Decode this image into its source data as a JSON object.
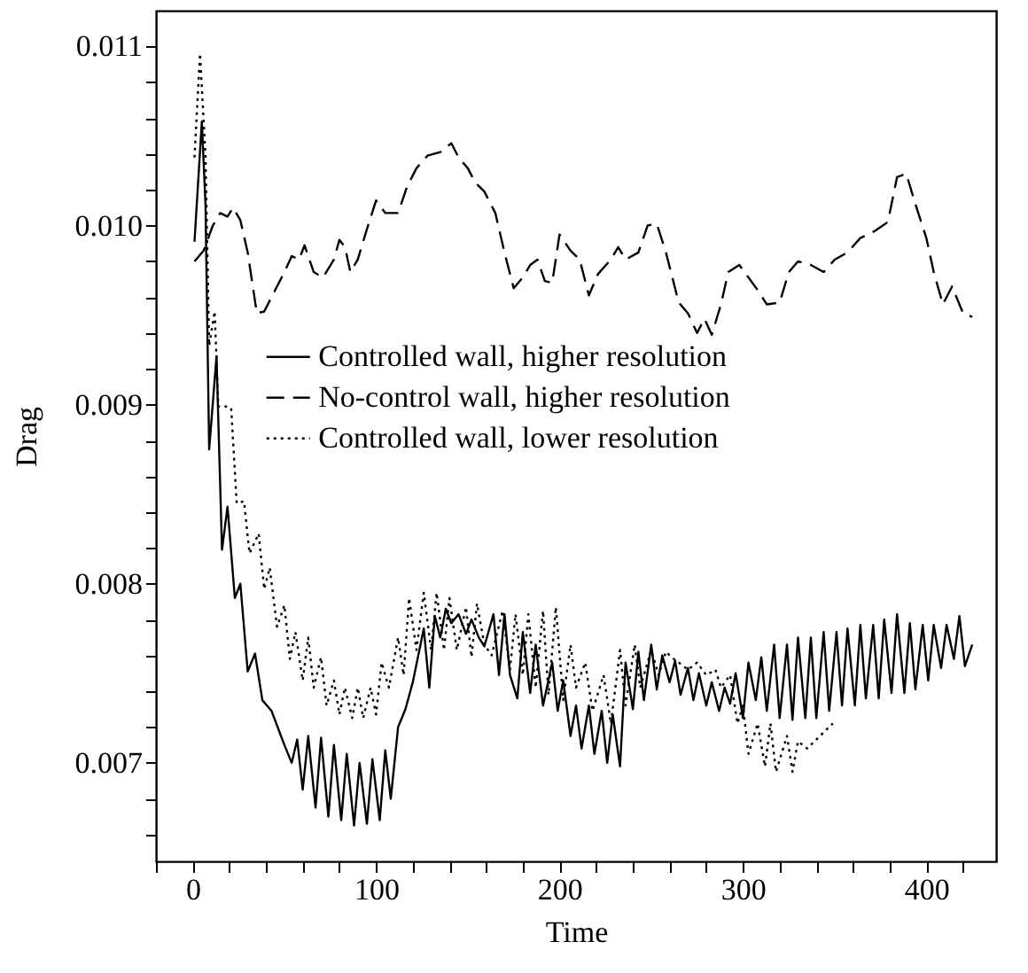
{
  "chart_data": {
    "type": "line",
    "xlabel": "Time",
    "ylabel": "Drag",
    "xlim": [
      -20,
      438
    ],
    "ylim": [
      0.00645,
      0.0112
    ],
    "xticks": [
      {
        "value": -20,
        "label": null
      },
      0,
      {
        "value": 20,
        "label": null
      },
      {
        "value": 40,
        "label": null
      },
      {
        "value": 60,
        "label": null
      },
      {
        "value": 80,
        "label": null
      },
      100,
      {
        "value": 120,
        "label": null
      },
      {
        "value": 140,
        "label": null
      },
      {
        "value": 160,
        "label": null
      },
      {
        "value": 180,
        "label": null
      },
      200,
      {
        "value": 220,
        "label": null
      },
      {
        "value": 240,
        "label": null
      },
      {
        "value": 260,
        "label": null
      },
      {
        "value": 280,
        "label": null
      },
      300,
      {
        "value": 320,
        "label": null
      },
      {
        "value": 340,
        "label": null
      },
      {
        "value": 360,
        "label": null
      },
      {
        "value": 380,
        "label": null
      },
      400,
      {
        "value": 420,
        "label": null
      }
    ],
    "yticks": [
      {
        "value": 0.0066,
        "label": null
      },
      {
        "value": 0.0068,
        "label": null
      },
      0.007,
      {
        "value": 0.0072,
        "label": null
      },
      {
        "value": 0.0074,
        "label": null
      },
      {
        "value": 0.0076,
        "label": null
      },
      {
        "value": 0.0078,
        "label": null
      },
      0.008,
      {
        "value": 0.0082,
        "label": null
      },
      {
        "value": 0.0084,
        "label": null
      },
      {
        "value": 0.0086,
        "label": null
      },
      {
        "value": 0.0088,
        "label": null
      },
      0.009,
      {
        "value": 0.0092,
        "label": null
      },
      {
        "value": 0.0094,
        "label": null
      },
      {
        "value": 0.0096,
        "label": null
      },
      {
        "value": 0.0098,
        "label": null
      },
      {
        "value": 0.01,
        "label": "0.010"
      },
      {
        "value": 0.0102,
        "label": null
      },
      {
        "value": 0.0104,
        "label": null
      },
      {
        "value": 0.0106,
        "label": null
      },
      {
        "value": 0.0108,
        "label": null
      },
      0.011
    ],
    "grid": false,
    "legend": "center",
    "marker": "none",
    "series": [
      {
        "name": "Controlled wall, higher resolution",
        "color": "#000000",
        "line_style": "solid",
        "x": [
          1,
          5,
          7,
          9,
          13,
          16,
          19,
          23,
          26,
          30,
          34,
          38,
          43,
          50,
          54,
          57,
          60,
          63,
          67,
          70,
          74,
          77,
          81,
          84,
          88,
          91,
          95,
          98,
          102,
          105,
          108,
          112,
          116,
          120,
          124,
          126,
          129,
          132,
          135,
          138,
          141,
          145,
          149,
          152,
          156,
          159,
          164,
          167,
          170,
          173,
          177,
          180,
          184,
          187,
          191,
          196,
          199,
          202,
          206,
          209,
          212,
          216,
          219,
          223,
          226,
          229,
          233,
          236,
          240,
          243,
          246,
          250,
          253,
          256,
          260,
          263,
          266,
          270,
          273,
          276,
          280,
          283,
          287,
          290,
          293,
          296,
          300,
          303,
          307,
          310,
          313,
          317,
          320,
          324,
          327,
          330,
          334,
          337,
          340,
          344,
          347,
          351,
          354,
          357,
          361,
          364,
          367,
          371,
          374,
          377,
          381,
          384,
          388,
          391,
          394,
          398,
          401,
          404,
          408,
          411,
          415,
          418,
          421,
          425
        ],
        "values": [
          0.00991,
          0.01058,
          0.01012,
          0.00875,
          0.00927,
          0.00819,
          0.00843,
          0.00792,
          0.008,
          0.00751,
          0.00761,
          0.00735,
          0.00729,
          0.0071,
          0.007,
          0.00713,
          0.00685,
          0.00715,
          0.00675,
          0.00714,
          0.0067,
          0.0071,
          0.00668,
          0.00705,
          0.00665,
          0.007,
          0.00666,
          0.00702,
          0.00668,
          0.00707,
          0.0068,
          0.0072,
          0.0073,
          0.00745,
          0.00765,
          0.00775,
          0.00742,
          0.00782,
          0.0077,
          0.00786,
          0.00778,
          0.00783,
          0.00772,
          0.0078,
          0.0077,
          0.00765,
          0.00783,
          0.00749,
          0.00783,
          0.00749,
          0.00736,
          0.00773,
          0.00739,
          0.00766,
          0.00732,
          0.00756,
          0.00729,
          0.00746,
          0.00715,
          0.00732,
          0.00708,
          0.00732,
          0.00705,
          0.00729,
          0.007,
          0.00727,
          0.00698,
          0.00756,
          0.0073,
          0.00762,
          0.00735,
          0.00766,
          0.00741,
          0.0076,
          0.00745,
          0.00757,
          0.00738,
          0.00753,
          0.00735,
          0.0075,
          0.00732,
          0.00745,
          0.00729,
          0.00742,
          0.00733,
          0.0075,
          0.00725,
          0.00756,
          0.00735,
          0.00759,
          0.00729,
          0.00766,
          0.00725,
          0.00766,
          0.00724,
          0.0077,
          0.00725,
          0.0077,
          0.00725,
          0.00773,
          0.00729,
          0.00773,
          0.00732,
          0.00775,
          0.00732,
          0.00777,
          0.00736,
          0.00777,
          0.00736,
          0.0078,
          0.00739,
          0.00783,
          0.00739,
          0.00778,
          0.00741,
          0.00777,
          0.00746,
          0.00777,
          0.00753,
          0.00777,
          0.00758,
          0.00782,
          0.00754,
          0.00766
        ]
      },
      {
        "name": "No-control wall, higher resolution",
        "color": "#000000",
        "line_style": "dashed",
        "x": [
          1,
          6,
          11,
          15,
          19,
          22,
          26,
          30,
          35,
          39,
          45,
          50,
          54,
          58,
          61,
          66,
          71,
          77,
          80,
          83,
          86,
          90,
          95,
          100,
          105,
          112,
          117,
          122,
          128,
          135,
          141,
          145,
          150,
          154,
          159,
          165,
          170,
          175,
          180,
          184,
          188,
          192,
          196,
          200,
          206,
          211,
          216,
          221,
          228,
          232,
          236,
          243,
          248,
          253,
          258,
          265,
          270,
          275,
          279,
          283,
          288,
          292,
          298,
          303,
          308,
          313,
          320,
          325,
          330,
          337,
          344,
          350,
          357,
          364,
          372,
          379,
          384,
          389,
          394,
          400,
          404,
          409,
          414,
          420,
          425
        ],
        "values": [
          0.0098,
          0.00986,
          0.01,
          0.01007,
          0.01005,
          0.0101,
          0.01003,
          0.00985,
          0.00951,
          0.00952,
          0.00964,
          0.00974,
          0.00983,
          0.00981,
          0.00989,
          0.00974,
          0.00971,
          0.00981,
          0.00992,
          0.00988,
          0.00974,
          0.00981,
          0.00998,
          0.01014,
          0.01007,
          0.01007,
          0.01022,
          0.01032,
          0.01039,
          0.01041,
          0.01046,
          0.01038,
          0.01032,
          0.01024,
          0.01019,
          0.01007,
          0.00985,
          0.00965,
          0.00971,
          0.00978,
          0.00981,
          0.00969,
          0.00968,
          0.00995,
          0.00986,
          0.00981,
          0.00961,
          0.00973,
          0.00981,
          0.00988,
          0.00981,
          0.00985,
          0.01,
          0.01001,
          0.00985,
          0.00957,
          0.00951,
          0.0094,
          0.00948,
          0.00939,
          0.00956,
          0.00974,
          0.00978,
          0.00971,
          0.00964,
          0.00956,
          0.00957,
          0.00974,
          0.0098,
          0.00978,
          0.00974,
          0.00981,
          0.00985,
          0.00993,
          0.00997,
          0.01002,
          0.01027,
          0.01029,
          0.01012,
          0.00993,
          0.00974,
          0.00956,
          0.00966,
          0.00951,
          0.00949
        ]
      },
      {
        "name": "Controlled wall, lower resolution",
        "color": "#000000",
        "line_style": "dotted",
        "x": [
          1,
          4,
          7,
          9,
          12,
          14,
          18,
          21,
          24,
          28,
          31,
          36,
          39,
          42,
          46,
          50,
          53,
          56,
          60,
          63,
          66,
          70,
          73,
          77,
          80,
          83,
          87,
          90,
          93,
          97,
          100,
          103,
          107,
          112,
          115,
          118,
          122,
          126,
          130,
          133,
          137,
          140,
          144,
          149,
          152,
          155,
          159,
          163,
          169,
          173,
          176,
          180,
          183,
          187,
          191,
          194,
          198,
          202,
          206,
          209,
          214,
          218,
          224,
          228,
          233,
          236,
          241,
          244,
          250,
          254,
          258,
          261,
          265,
          270,
          275,
          280,
          285,
          288,
          293,
          297,
          300,
          303,
          308,
          312,
          315,
          318,
          324,
          327,
          330,
          335,
          342,
          349
        ],
        "values": [
          0.01038,
          0.01096,
          0.01039,
          0.00933,
          0.00952,
          0.00899,
          0.00899,
          0.00898,
          0.00845,
          0.00846,
          0.00817,
          0.00828,
          0.00797,
          0.00809,
          0.00776,
          0.00788,
          0.00758,
          0.00773,
          0.00746,
          0.0077,
          0.00742,
          0.00759,
          0.00732,
          0.00746,
          0.00727,
          0.00742,
          0.00725,
          0.00742,
          0.00725,
          0.00742,
          0.00727,
          0.00756,
          0.00742,
          0.0077,
          0.00749,
          0.00792,
          0.00763,
          0.00795,
          0.00763,
          0.00795,
          0.00763,
          0.00792,
          0.00763,
          0.00787,
          0.00759,
          0.00789,
          0.00766,
          0.0076,
          0.00785,
          0.00752,
          0.00783,
          0.00749,
          0.00783,
          0.00742,
          0.00785,
          0.00738,
          0.00787,
          0.00735,
          0.00766,
          0.00742,
          0.00756,
          0.00729,
          0.00749,
          0.00722,
          0.00763,
          0.00732,
          0.00766,
          0.00742,
          0.00763,
          0.00749,
          0.00762,
          0.00759,
          0.00756,
          0.00752,
          0.00756,
          0.00749,
          0.00752,
          0.00742,
          0.00749,
          0.00722,
          0.00732,
          0.00705,
          0.00722,
          0.00698,
          0.00722,
          0.00695,
          0.00715,
          0.00695,
          0.00712,
          0.00708,
          0.00715,
          0.00722
        ]
      }
    ]
  }
}
